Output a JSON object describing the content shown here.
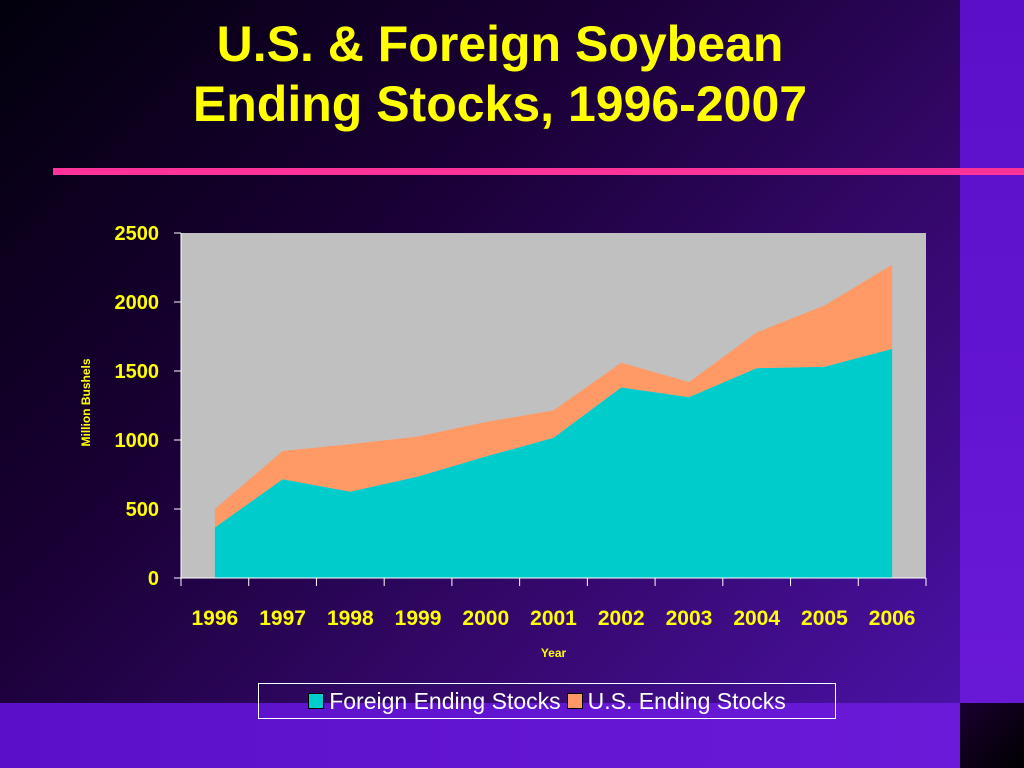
{
  "slide": {
    "title_line1": "U.S. & Foreign Soybean",
    "title_line2": "Ending Stocks, 1996-2007"
  },
  "colors": {
    "title": "#ffff00",
    "rule": "#ff3399",
    "plot_background": "#c0c0c0",
    "foreign": "#00cccc",
    "us": "#ff9966"
  },
  "chart_data": {
    "type": "area",
    "stacked": true,
    "title": "U.S. & Foreign Soybean Ending Stocks, 1996-2007",
    "xlabel": "Year",
    "ylabel": "Million Bushels",
    "ylim": [
      0,
      2500
    ],
    "yticks": [
      0,
      500,
      1000,
      1500,
      2000,
      2500
    ],
    "grid": false,
    "legend": "bottom",
    "x": [
      "1996",
      "1997",
      "1998",
      "1999",
      "2000",
      "2001",
      "2002",
      "2003",
      "2004",
      "2005",
      "2006"
    ],
    "series": [
      {
        "name": "Foreign Ending Stocks",
        "color": "#00cccc",
        "values": [
          365,
          715,
          625,
          735,
          880,
          1015,
          1380,
          1310,
          1520,
          1530,
          1660
        ]
      },
      {
        "name": "U.S. Ending Stocks",
        "color": "#ff9966",
        "values": [
          135,
          205,
          345,
          290,
          250,
          200,
          180,
          110,
          260,
          445,
          610
        ]
      }
    ]
  }
}
